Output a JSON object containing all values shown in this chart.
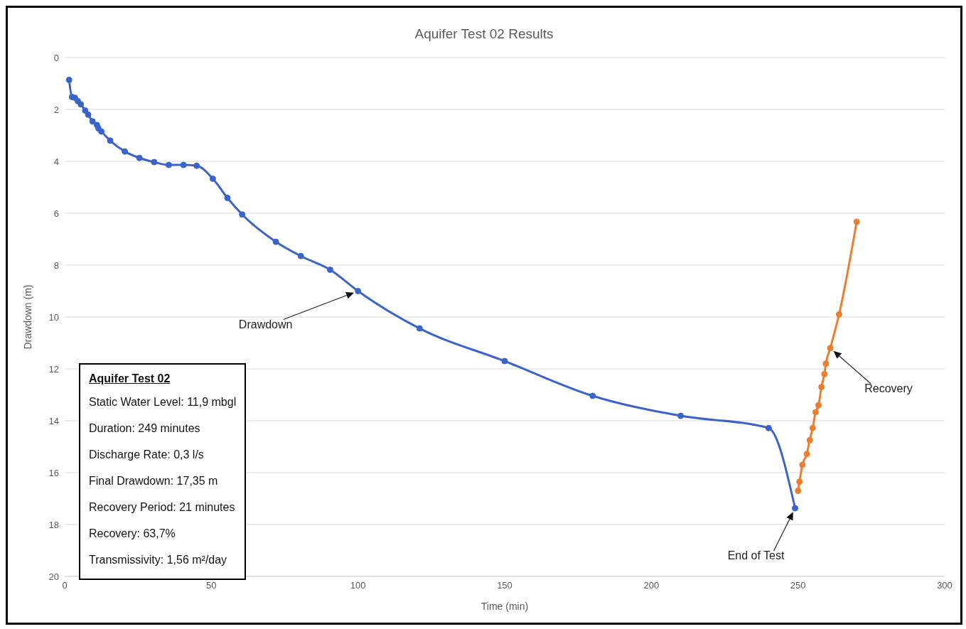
{
  "chart_data": {
    "type": "line",
    "title": "Aquifer Test 02 Results",
    "xlabel": "Time (min)",
    "ylabel": "Drawdown (m)",
    "xlim": [
      0,
      300
    ],
    "xticks": [
      0,
      50,
      100,
      150,
      200,
      250,
      300
    ],
    "ylim": [
      20,
      0
    ],
    "yticks": [
      0,
      2,
      4,
      6,
      8,
      10,
      12,
      14,
      16,
      18,
      20
    ],
    "grid": "y",
    "marker": "circle",
    "line_style": "solid",
    "series": [
      {
        "color": "#3a64c8",
        "x": [
          1.5,
          2.5,
          3.5,
          4.5,
          5.5,
          7,
          8,
          9.5,
          11,
          11.5,
          12.5,
          15.5,
          20.5,
          25.5,
          30.5,
          35.5,
          40.5,
          45,
          50.5,
          55.5,
          60.5,
          72,
          80.5,
          90.5,
          100,
          121,
          150,
          180,
          210,
          240,
          249
        ],
        "values": [
          0.86,
          1.52,
          1.55,
          1.68,
          1.8,
          2.04,
          2.2,
          2.46,
          2.6,
          2.73,
          2.85,
          3.2,
          3.62,
          3.87,
          4.03,
          4.14,
          4.14,
          4.17,
          4.67,
          5.41,
          6.05,
          7.1,
          7.65,
          8.18,
          9.0,
          10.44,
          11.7,
          13.04,
          13.81,
          14.28,
          17.37
        ]
      },
      {
        "color": "#ed7d31",
        "x": [
          250,
          250.5,
          251.5,
          253,
          254,
          255,
          256,
          257,
          258,
          259,
          259.5,
          261,
          264,
          270
        ],
        "values": [
          16.7,
          16.35,
          15.7,
          15.28,
          14.75,
          14.28,
          13.67,
          13.4,
          12.7,
          12.2,
          11.8,
          11.2,
          9.9,
          6.33
        ]
      }
    ],
    "annotations": [
      "Drawdown",
      "End of Test",
      "Recovery",
      "Aquifer Test 02",
      "Static Water Level: 11,9 mbgl",
      "Duration: 249 minutes",
      "Discharge Rate: 0,3 l/s",
      "Final Drawdown: 17,35 m",
      "Recovery Period: 21 minutes",
      "Recovery: 63,7%",
      "Transmissivity: 1,56 m²/day"
    ]
  }
}
